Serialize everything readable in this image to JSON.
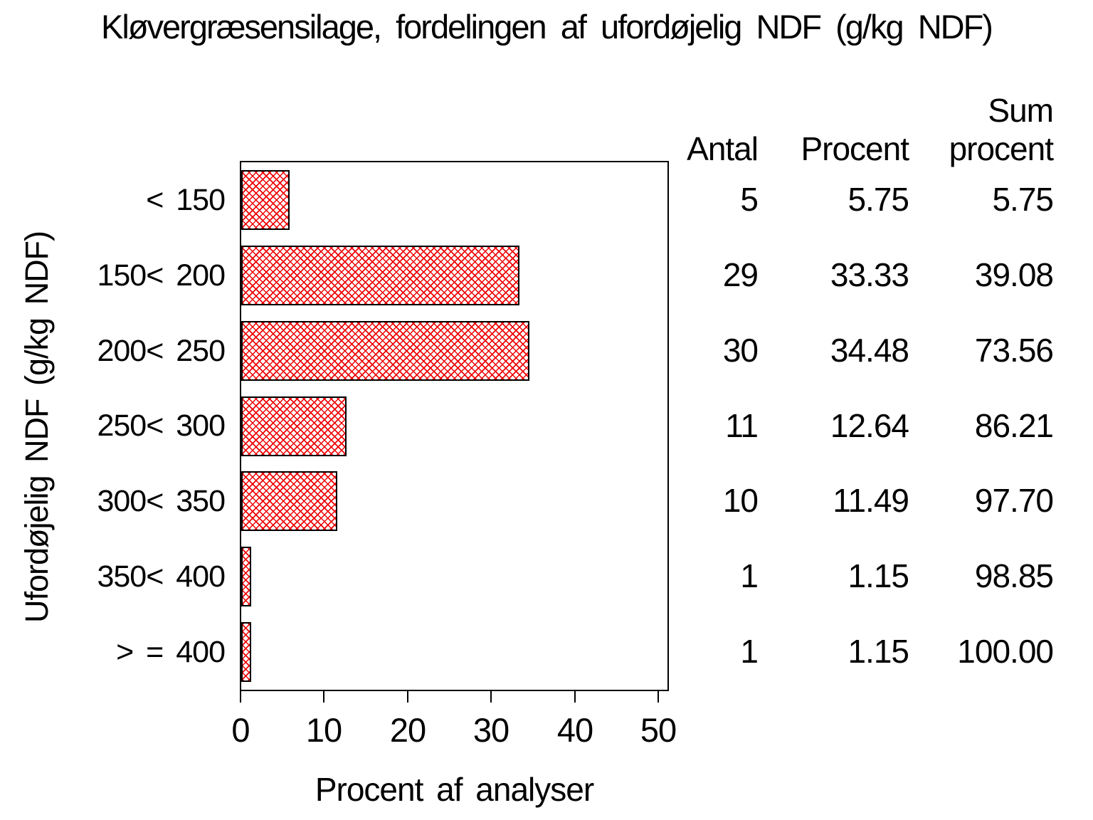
{
  "title": "Kløvergræsensilage, fordelingen af ufordøjelig NDF (g/kg NDF)",
  "colors": {
    "background": "#ffffff",
    "text": "#000000",
    "bar_hatch": "#ee0000",
    "bar_border": "#000000",
    "axis": "#000000"
  },
  "chart_data": {
    "type": "bar",
    "orientation": "horizontal",
    "title": "Kløvergræsensilage, fordelingen af ufordøjelig NDF (g/kg NDF)",
    "xlabel": "Procent af analyser",
    "ylabel": "Ufordøjelig NDF (g/kg NDF)",
    "xlim": [
      0,
      50
    ],
    "x_ticks": [
      "0",
      "10",
      "20",
      "30",
      "40",
      "50"
    ],
    "grid": "off",
    "bar_fill": "red diagonal crosshatch on white",
    "categories": [
      "< 150",
      "150< 200",
      "200< 250",
      "250< 300",
      "300< 350",
      "350< 400",
      "> = 400"
    ],
    "values": [
      5.75,
      33.33,
      34.48,
      12.64,
      11.49,
      1.15,
      1.15
    ],
    "counts": [
      5,
      29,
      30,
      11,
      10,
      1,
      1
    ],
    "cum_percent": [
      5.75,
      39.08,
      73.56,
      86.21,
      97.7,
      98.85,
      100.0
    ]
  },
  "table": {
    "headers": {
      "antal": "Antal",
      "procent": "Procent",
      "sum_line1": "Sum",
      "sum_line2": "procent"
    },
    "rows": [
      {
        "antal": "5",
        "procent": "5.75",
        "sum": "5.75"
      },
      {
        "antal": "29",
        "procent": "33.33",
        "sum": "39.08"
      },
      {
        "antal": "30",
        "procent": "34.48",
        "sum": "73.56"
      },
      {
        "antal": "11",
        "procent": "12.64",
        "sum": "86.21"
      },
      {
        "antal": "10",
        "procent": "11.49",
        "sum": "97.70"
      },
      {
        "antal": "1",
        "procent": "1.15",
        "sum": "98.85"
      },
      {
        "antal": "1",
        "procent": "1.15",
        "sum": "100.00"
      }
    ]
  }
}
